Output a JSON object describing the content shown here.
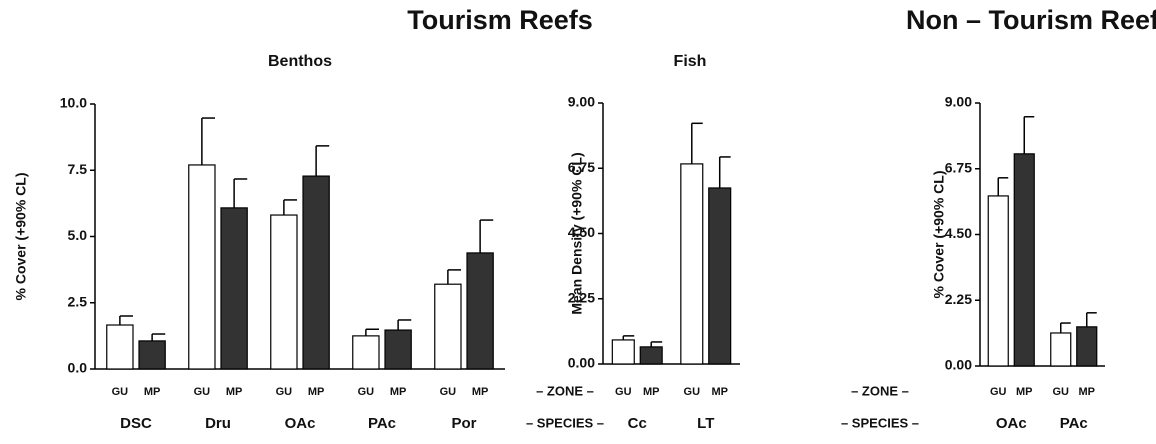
{
  "headers": [
    "Tourism Reefs",
    "Non – Tourism Reefs"
  ],
  "zone_label": "– ZONE –",
  "species_label": "– SPECIES –",
  "chart_data": [
    {
      "type": "bar",
      "title": "Benthos",
      "y_label": "% Cover (+90% CL)",
      "categories": [
        "DSC",
        "Dru",
        "OAc",
        "PAc",
        "Por"
      ],
      "series": [
        {
          "name": "GU",
          "color": "#ffffff",
          "values": [
            1.66,
            7.7,
            5.81,
            1.25,
            3.2
          ],
          "errors": [
            0.34,
            1.77,
            0.57,
            0.25,
            0.54
          ]
        },
        {
          "name": "MP",
          "color": "#333333",
          "values": [
            1.06,
            6.08,
            7.28,
            1.47,
            4.38
          ],
          "errors": [
            0.26,
            1.09,
            1.14,
            0.38,
            1.24
          ]
        }
      ],
      "ylim": [
        0,
        10
      ],
      "yticks": [
        {
          "value": 0,
          "label": "0.0"
        },
        {
          "value": 2.5,
          "label": "2.5"
        },
        {
          "value": 5,
          "label": "5.0"
        },
        {
          "value": 7.5,
          "label": "7.5"
        },
        {
          "value": 10,
          "label": "10.0"
        }
      ]
    },
    {
      "type": "bar",
      "title": "Fish",
      "y_label": "Mean Density (+90% CL)",
      "categories": [
        "Cc",
        "LT"
      ],
      "series": [
        {
          "name": "GU",
          "color": "#ffffff",
          "values": [
            0.83,
            6.9
          ],
          "errors": [
            0.14,
            1.4
          ]
        },
        {
          "name": "MP",
          "color": "#333333",
          "values": [
            0.59,
            6.07
          ],
          "errors": [
            0.17,
            1.07
          ]
        }
      ],
      "ylim": [
        0,
        9
      ],
      "yticks": [
        {
          "value": 0,
          "label": "0.00"
        },
        {
          "value": 2.25,
          "label": "2.25"
        },
        {
          "value": 4.5,
          "label": "4.50"
        },
        {
          "value": 6.75,
          "label": "6.75"
        },
        {
          "value": 9,
          "label": "9.00"
        }
      ]
    },
    {
      "type": "bar",
      "y_label": "% Cover (+90% CL)",
      "categories": [
        "OAc",
        "PAc"
      ],
      "series": [
        {
          "name": "GU",
          "color": "#ffffff",
          "values": [
            5.82,
            1.13
          ],
          "errors": [
            0.62,
            0.34
          ]
        },
        {
          "name": "MP",
          "color": "#333333",
          "values": [
            7.26,
            1.34
          ],
          "errors": [
            1.27,
            0.48
          ]
        }
      ],
      "ylim": [
        0,
        9
      ],
      "yticks": [
        {
          "value": 0,
          "label": "0.00"
        },
        {
          "value": 2.25,
          "label": "2.25"
        },
        {
          "value": 4.5,
          "label": "4.50"
        },
        {
          "value": 6.75,
          "label": "6.75"
        },
        {
          "value": 9,
          "label": "9.00"
        }
      ]
    }
  ]
}
